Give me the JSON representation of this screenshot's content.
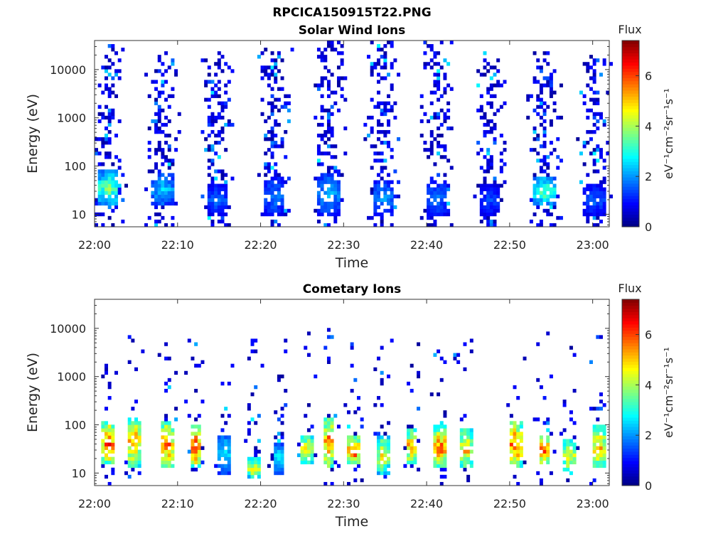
{
  "figure_title": "RPCICA150915T22.PNG",
  "colorbar": {
    "title": "Flux",
    "label": "eV⁻¹cm⁻²sr⁻¹s⁻¹",
    "ticks": [
      "0",
      "2",
      "4",
      "6"
    ],
    "range": [
      0,
      7.4
    ]
  },
  "chart_data": [
    {
      "type": "heatmap",
      "title": "Solar Wind Ions",
      "xlabel": "Time",
      "ylabel": "Energy (eV)",
      "x_range": [
        "22:00",
        "23:02"
      ],
      "y_scale": "log",
      "y_range": [
        5.5,
        40000
      ],
      "x_ticks": [
        "22:00",
        "22:10",
        "22:20",
        "22:30",
        "22:40",
        "22:50",
        "23:00"
      ],
      "y_ticks": [
        "10",
        "100",
        "1000",
        "10000"
      ],
      "bursts": [
        {
          "center_min": 1.5,
          "noise_e_max": 40000,
          "core_e": [
            15,
            80
          ],
          "core_flux": 3.8
        },
        {
          "center_min": 8.0,
          "noise_e_max": 25000,
          "core_e": [
            15,
            70
          ],
          "core_flux": 2.6
        },
        {
          "center_min": 14.5,
          "noise_e_max": 25000,
          "core_e": [
            10,
            40
          ],
          "core_flux": 1.8
        },
        {
          "center_min": 21.5,
          "noise_e_max": 30000,
          "core_e": [
            10,
            60
          ],
          "core_flux": 2.0
        },
        {
          "center_min": 28.0,
          "noise_e_max": 40000,
          "core_e": [
            10,
            70
          ],
          "core_flux": 2.4
        },
        {
          "center_min": 34.5,
          "noise_e_max": 40000,
          "core_e": [
            10,
            50
          ],
          "core_flux": 2.2
        },
        {
          "center_min": 41.0,
          "noise_e_max": 40000,
          "core_e": [
            10,
            50
          ],
          "core_flux": 2.0
        },
        {
          "center_min": 47.5,
          "noise_e_max": 25000,
          "core_e": [
            10,
            40
          ],
          "core_flux": 1.6
        },
        {
          "center_min": 54.0,
          "noise_e_max": 25000,
          "core_e": [
            15,
            60
          ],
          "core_flux": 3.6
        },
        {
          "center_min": 60.0,
          "noise_e_max": 20000,
          "core_e": [
            10,
            40
          ],
          "core_flux": 1.8
        }
      ]
    },
    {
      "type": "heatmap",
      "title": "Cometary Ions",
      "xlabel": "Time",
      "ylabel": "Energy (eV)",
      "x_range": [
        "22:00",
        "23:02"
      ],
      "y_scale": "log",
      "y_range": [
        5.5,
        40000
      ],
      "x_ticks": [
        "22:00",
        "22:10",
        "22:20",
        "22:30",
        "22:40",
        "22:50",
        "23:00"
      ],
      "y_ticks": [
        "10",
        "100",
        "1000",
        "10000"
      ],
      "bursts": [
        {
          "center_min": 1.5,
          "noise_e_max": 8000,
          "core_e": [
            15,
            120
          ],
          "core_flux": 6.4
        },
        {
          "center_min": 4.5,
          "noise_e_max": 8000,
          "core_e": [
            12,
            150
          ],
          "core_flux": 6.0
        },
        {
          "center_min": 8.5,
          "noise_e_max": 10000,
          "core_e": [
            12,
            120
          ],
          "core_flux": 6.2
        },
        {
          "center_min": 12.0,
          "noise_e_max": 8000,
          "core_e": [
            12,
            100
          ],
          "core_flux": 6.4
        },
        {
          "center_min": 15.5,
          "noise_e_max": 10000,
          "core_e": [
            10,
            60
          ],
          "core_flux": 3.0
        },
        {
          "center_min": 19.0,
          "noise_e_max": 6000,
          "core_e": [
            8,
            20
          ],
          "core_flux": 5.2
        },
        {
          "center_min": 22.0,
          "noise_e_max": 10000,
          "core_e": [
            10,
            40
          ],
          "core_flux": 3.0
        },
        {
          "center_min": 25.5,
          "noise_e_max": 8000,
          "core_e": [
            15,
            60
          ],
          "core_flux": 5.4
        },
        {
          "center_min": 28.0,
          "noise_e_max": 10000,
          "core_e": [
            12,
            150
          ],
          "core_flux": 6.0
        },
        {
          "center_min": 31.0,
          "noise_e_max": 10000,
          "core_e": [
            15,
            60
          ],
          "core_flux": 6.8
        },
        {
          "center_min": 34.5,
          "noise_e_max": 10000,
          "core_e": [
            10,
            60
          ],
          "core_flux": 5.0
        },
        {
          "center_min": 38.0,
          "noise_e_max": 8000,
          "core_e": [
            15,
            80
          ],
          "core_flux": 6.0
        },
        {
          "center_min": 41.5,
          "noise_e_max": 10000,
          "core_e": [
            12,
            100
          ],
          "core_flux": 6.2
        },
        {
          "center_min": 44.5,
          "noise_e_max": 6000,
          "core_e": [
            12,
            80
          ],
          "core_flux": 5.6
        },
        {
          "center_min": 50.5,
          "noise_e_max": 8000,
          "core_e": [
            12,
            120
          ],
          "core_flux": 6.4
        },
        {
          "center_min": 54.0,
          "noise_e_max": 10000,
          "core_e": [
            15,
            60
          ],
          "core_flux": 6.8
        },
        {
          "center_min": 57.0,
          "noise_e_max": 10000,
          "core_e": [
            10,
            50
          ],
          "core_flux": 5.2
        },
        {
          "center_min": 60.5,
          "noise_e_max": 10000,
          "core_e": [
            12,
            100
          ],
          "core_flux": 5.8
        }
      ]
    }
  ]
}
